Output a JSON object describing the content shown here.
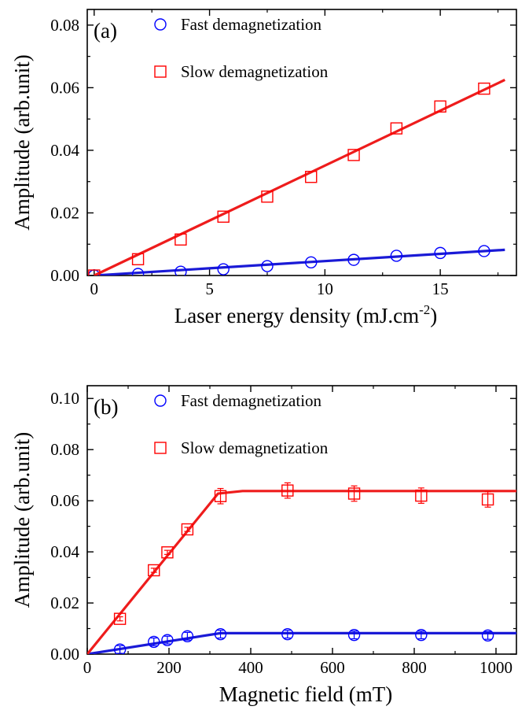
{
  "chart_data": [
    {
      "type": "scatter",
      "panel_label": "(a)",
      "xlabel": "Laser energy density (mJ.cm",
      "xlabel_sup": "-2",
      "xlabel_tail": ")",
      "ylabel": "Amplitude (arb.unit)",
      "xlim": [
        -0.3,
        18.3
      ],
      "ylim": [
        0,
        0.085
      ],
      "xticks": [
        0,
        5,
        10,
        15
      ],
      "yticks": [
        0.0,
        0.02,
        0.04,
        0.06,
        0.08
      ],
      "ytick_labels": [
        "0.00",
        "0.02",
        "0.04",
        "0.06",
        "0.08"
      ],
      "xtick_labels": [
        "0",
        "5",
        "10",
        "15"
      ],
      "legend_position": "top-center",
      "series": [
        {
          "name": "Fast demagnetization",
          "marker": "circle",
          "color": "#0000ff",
          "x": [
            0,
            1.9,
            3.75,
            5.6,
            7.5,
            9.4,
            11.25,
            13.1,
            15.0,
            16.9
          ],
          "y": [
            0.0,
            0.0005,
            0.0012,
            0.002,
            0.003,
            0.0042,
            0.005,
            0.0063,
            0.0072,
            0.0078
          ],
          "fit": {
            "x": [
              0,
              17.8
            ],
            "y": [
              0,
              0.0082
            ]
          }
        },
        {
          "name": "Slow demagnetization",
          "marker": "square",
          "color": "#ff0000",
          "x": [
            0,
            1.9,
            3.75,
            5.6,
            7.5,
            9.4,
            11.25,
            13.1,
            15.0,
            16.9
          ],
          "y": [
            0.0,
            0.0052,
            0.0115,
            0.0188,
            0.0252,
            0.0315,
            0.0385,
            0.047,
            0.054,
            0.0597
          ],
          "fit": {
            "x": [
              0,
              17.8
            ],
            "y": [
              0,
              0.0625
            ]
          }
        }
      ]
    },
    {
      "type": "scatter",
      "panel_label": "(b)",
      "xlabel": "Magnetic field (mT)",
      "ylabel": "Amplitude (arb.unit)",
      "xlim": [
        0,
        1050
      ],
      "ylim": [
        0,
        0.105
      ],
      "xticks": [
        0,
        200,
        400,
        600,
        800,
        1000
      ],
      "xtick_labels": [
        "0",
        "200",
        "400",
        "600",
        "800",
        "1000"
      ],
      "yticks": [
        0.0,
        0.02,
        0.04,
        0.06,
        0.08,
        0.1
      ],
      "ytick_labels": [
        "0.00",
        "0.02",
        "0.04",
        "0.06",
        "0.08",
        "0.10"
      ],
      "legend_position": "top-center",
      "series": [
        {
          "name": "Fast demagnetization",
          "marker": "circle",
          "color": "#0000ff",
          "x": [
            80,
            163,
            196,
            245,
            326,
            490,
            653,
            817,
            980
          ],
          "y": [
            0.0018,
            0.0048,
            0.0055,
            0.007,
            0.0078,
            0.0078,
            0.0075,
            0.0075,
            0.0073
          ],
          "err": [
            0.0015,
            0.0015,
            0.0015,
            0.0015,
            0.0015,
            0.0015,
            0.0015,
            0.0015,
            0.0015
          ],
          "fit": {
            "x": [
              0,
              326,
              1050
            ],
            "y": [
              0,
              0.0082,
              0.0082
            ]
          }
        },
        {
          "name": "Slow demagnetization",
          "marker": "square",
          "color": "#ff0000",
          "x": [
            80,
            163,
            196,
            245,
            326,
            490,
            653,
            817,
            980
          ],
          "y": [
            0.0138,
            0.0328,
            0.0398,
            0.0488,
            0.0618,
            0.064,
            0.0628,
            0.062,
            0.0605
          ],
          "err": [
            0.0008,
            0.0008,
            0.0008,
            0.0008,
            0.003,
            0.003,
            0.003,
            0.003,
            0.003
          ],
          "fit": {
            "x": [
              0,
              320,
              380,
              1050
            ],
            "y": [
              0,
              0.0628,
              0.0638,
              0.0638
            ]
          }
        }
      ]
    }
  ]
}
